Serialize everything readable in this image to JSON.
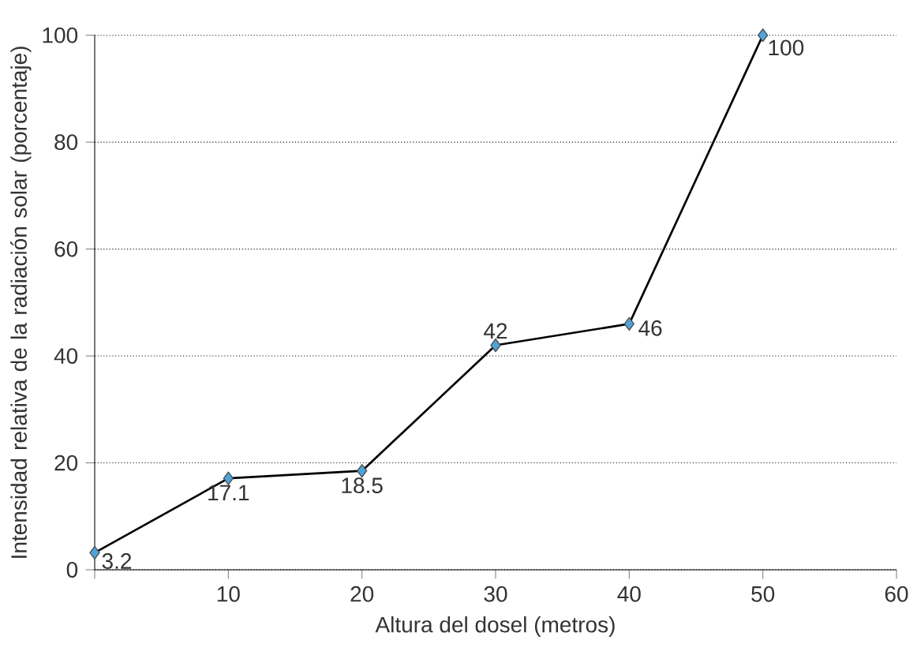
{
  "chart_data": {
    "type": "line",
    "xlabel": "Altura del dosel (metros)",
    "ylabel": "Intensidad relativa de la radiación solar (porcentaje)",
    "series": [
      {
        "color": "#4fa3d8",
        "x": [
          0,
          10,
          20,
          30,
          40,
          50
        ],
        "values": [
          3.2,
          17.1,
          18.5,
          42,
          46,
          100
        ],
        "value_labels": [
          "3.2",
          "17.1",
          "18.5",
          "42",
          "46",
          "100"
        ]
      }
    ],
    "xlim": [
      0,
      60
    ],
    "ylim": [
      0,
      100
    ],
    "xticks": [
      {
        "value": 0,
        "label": null
      },
      10,
      20,
      30,
      40,
      50,
      60
    ],
    "yticks": [
      0,
      20,
      40,
      60,
      80,
      100
    ],
    "grid": "y",
    "marker": "diamond",
    "line_style": "solid"
  }
}
